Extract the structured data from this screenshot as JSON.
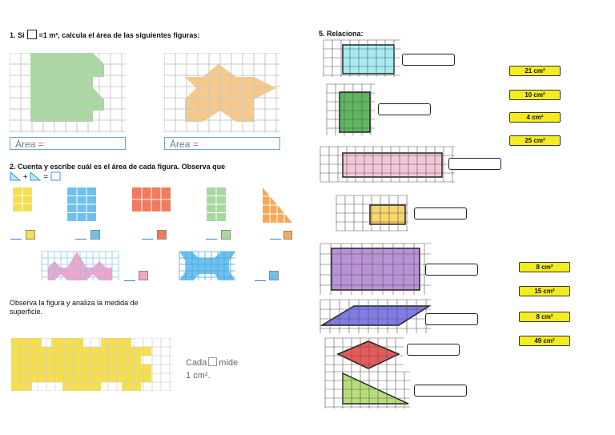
{
  "section1": {
    "number": "1. Si",
    "text": "=1 m², calcula el área de las siguientes figuras:",
    "area_label": "Área",
    "area_eq": "="
  },
  "section2": {
    "title": "2. Cuenta y escribe cuál es el área de cada figura. Observa que",
    "formula_plus": "+",
    "formula_eq": "="
  },
  "observe": {
    "text": "Observa la figura y analiza la medida de superficie.",
    "cada": "Cada",
    "mide": "mide",
    "unit": "1 cm²."
  },
  "section5": {
    "title": "5. Relaciona:",
    "tags_top": [
      "21 cm²",
      "10 cm²",
      "4 cm²",
      "25 cm²"
    ],
    "tags_bottom": [
      "8 cm²",
      "15 cm²",
      "8 cm²",
      "49 cm²"
    ]
  },
  "colors": {
    "green": "#a8d8a0",
    "orange": "#f6c98a",
    "yellow": "#f6df4a",
    "blue": "#6ec1ef",
    "red": "#f07b5f",
    "pink": "#f3a4c8",
    "purple": "#b993d6",
    "lightblue": "#a6ecf2"
  }
}
